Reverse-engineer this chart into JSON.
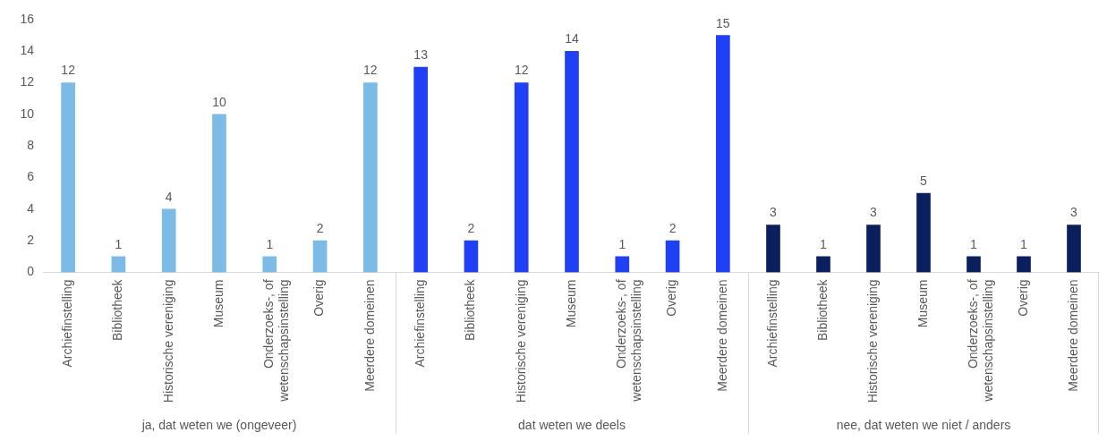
{
  "chart_data": [
    {
      "type": "bar",
      "xlabel": "ja, dat weten we (ongeveer)",
      "categories": [
        "Archiefinstelling",
        "Bibliotheek",
        "Historische vereniging",
        "Museum",
        "Onderzoeks-, of wetenschapsinstelling",
        "Overig",
        "Meerdere domeinen"
      ],
      "values": [
        12,
        1,
        4,
        10,
        1,
        2,
        12
      ],
      "color": "#7cbbe6",
      "ylim": [
        0,
        16
      ],
      "yticks": [
        0,
        2,
        4,
        6,
        8,
        10,
        12,
        14,
        16
      ],
      "grid": false,
      "data_labels": true
    },
    {
      "type": "bar",
      "xlabel": "dat weten we deels",
      "categories": [
        "Archiefinstelling",
        "Bibliotheek",
        "Historische vereniging",
        "Museum",
        "Onderzoeks-, of wetenschapsinstelling",
        "Overig",
        "Meerdere domeinen"
      ],
      "values": [
        13,
        2,
        12,
        14,
        1,
        2,
        15
      ],
      "color": "#1f40f5",
      "ylim": [
        0,
        16
      ],
      "yticks": [
        0,
        2,
        4,
        6,
        8,
        10,
        12,
        14,
        16
      ],
      "grid": false,
      "data_labels": true,
      "tick_labels": "x"
    },
    {
      "type": "bar",
      "xlabel": "nee, dat weten we niet / anders",
      "categories": [
        "Archiefinstelling",
        "Bibliotheek",
        "Historische vereniging",
        "Museum",
        "Onderzoeks-, of wetenschapsinstelling",
        "Overig",
        "Meerdere domeinen"
      ],
      "values": [
        3,
        1,
        3,
        5,
        1,
        1,
        3
      ],
      "color": "#0b1f5e",
      "ylim": [
        0,
        16
      ],
      "yticks": [
        0,
        2,
        4,
        6,
        8,
        10,
        12,
        14,
        16
      ],
      "grid": false,
      "data_labels": true,
      "tick_labels": "x"
    }
  ]
}
